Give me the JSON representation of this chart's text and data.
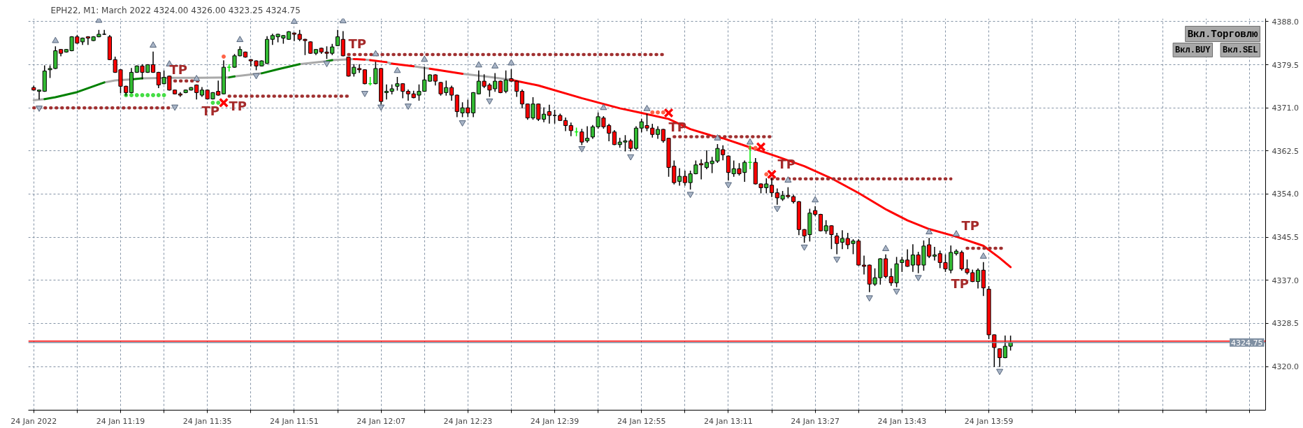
{
  "chart_data": {
    "type": "candlestick",
    "title": "EPH22, M1: March 2022  4324.00 4326.00 4323.25 4324.75",
    "x": [
      "2022-01-24T11:03",
      "2022-01-24T11:04",
      "2022-01-24T11:05",
      "2022-01-24T11:06",
      "2022-01-24T11:07",
      "2022-01-24T11:08",
      "2022-01-24T11:09",
      "2022-01-24T11:10",
      "2022-01-24T11:11",
      "2022-01-24T11:12",
      "2022-01-24T11:13",
      "2022-01-24T11:14",
      "2022-01-24T11:15",
      "2022-01-24T11:16",
      "2022-01-24T11:17",
      "2022-01-24T11:18",
      "2022-01-24T11:19",
      "2022-01-24T11:20",
      "2022-01-24T11:21",
      "2022-01-24T11:22",
      "2022-01-24T11:23",
      "2022-01-24T11:24",
      "2022-01-24T11:25",
      "2022-01-24T11:26",
      "2022-01-24T11:27",
      "2022-01-24T11:28",
      "2022-01-24T11:29",
      "2022-01-24T11:30",
      "2022-01-24T11:31",
      "2022-01-24T11:32",
      "2022-01-24T11:33",
      "2022-01-24T11:34",
      "2022-01-24T11:35",
      "2022-01-24T11:36",
      "2022-01-24T11:37",
      "2022-01-24T11:38",
      "2022-01-24T11:39",
      "2022-01-24T11:40",
      "2022-01-24T11:41",
      "2022-01-24T11:42",
      "2022-01-24T11:43",
      "2022-01-24T11:44",
      "2022-01-24T11:45",
      "2022-01-24T11:46",
      "2022-01-24T11:47",
      "2022-01-24T11:48",
      "2022-01-24T11:49",
      "2022-01-24T11:50",
      "2022-01-24T11:51",
      "2022-01-24T11:52",
      "2022-01-24T11:53",
      "2022-01-24T11:54",
      "2022-01-24T11:55",
      "2022-01-24T11:56",
      "2022-01-24T11:57",
      "2022-01-24T11:58",
      "2022-01-24T11:59",
      "2022-01-24T12:00",
      "2022-01-24T12:01",
      "2022-01-24T12:02",
      "2022-01-24T12:03",
      "2022-01-24T12:04",
      "2022-01-24T12:05",
      "2022-01-24T12:06",
      "2022-01-24T12:07",
      "2022-01-24T12:08",
      "2022-01-24T12:09",
      "2022-01-24T12:10",
      "2022-01-24T12:11",
      "2022-01-24T12:12",
      "2022-01-24T12:13",
      "2022-01-24T12:14",
      "2022-01-24T12:15",
      "2022-01-24T12:16",
      "2022-01-24T12:17",
      "2022-01-24T12:18",
      "2022-01-24T12:19",
      "2022-01-24T12:20",
      "2022-01-24T12:21",
      "2022-01-24T12:22",
      "2022-01-24T12:23",
      "2022-01-24T12:24",
      "2022-01-24T12:25",
      "2022-01-24T12:26",
      "2022-01-24T12:27",
      "2022-01-24T12:28",
      "2022-01-24T12:29",
      "2022-01-24T12:30",
      "2022-01-24T12:31",
      "2022-01-24T12:32",
      "2022-01-24T12:33",
      "2022-01-24T12:34",
      "2022-01-24T12:35",
      "2022-01-24T12:36",
      "2022-01-24T12:37",
      "2022-01-24T12:38",
      "2022-01-24T12:39",
      "2022-01-24T12:40",
      "2022-01-24T12:41",
      "2022-01-24T12:42",
      "2022-01-24T12:43",
      "2022-01-24T12:44",
      "2022-01-24T12:45",
      "2022-01-24T12:46",
      "2022-01-24T12:47",
      "2022-01-24T12:48",
      "2022-01-24T12:49",
      "2022-01-24T12:50",
      "2022-01-24T12:51",
      "2022-01-24T12:52",
      "2022-01-24T12:53",
      "2022-01-24T12:54",
      "2022-01-24T12:55",
      "2022-01-24T12:56",
      "2022-01-24T12:57",
      "2022-01-24T12:58",
      "2022-01-24T12:59",
      "2022-01-24T13:00",
      "2022-01-24T13:01",
      "2022-01-24T13:02",
      "2022-01-24T13:03",
      "2022-01-24T13:04",
      "2022-01-24T13:05",
      "2022-01-24T13:06",
      "2022-01-24T13:07",
      "2022-01-24T13:08",
      "2022-01-24T13:09",
      "2022-01-24T13:10",
      "2022-01-24T13:11",
      "2022-01-24T13:12",
      "2022-01-24T13:13",
      "2022-01-24T13:14",
      "2022-01-24T13:15",
      "2022-01-24T13:16",
      "2022-01-24T13:17",
      "2022-01-24T13:18",
      "2022-01-24T13:19",
      "2022-01-24T13:20",
      "2022-01-24T13:21",
      "2022-01-24T13:22",
      "2022-01-24T13:23",
      "2022-01-24T13:24",
      "2022-01-24T13:25",
      "2022-01-24T13:26",
      "2022-01-24T13:27",
      "2022-01-24T13:28",
      "2022-01-24T13:29",
      "2022-01-24T13:30",
      "2022-01-24T13:31",
      "2022-01-24T13:32",
      "2022-01-24T13:33",
      "2022-01-24T13:34",
      "2022-01-24T13:35",
      "2022-01-24T13:36",
      "2022-01-24T13:37",
      "2022-01-24T13:38",
      "2022-01-24T13:39",
      "2022-01-24T13:40",
      "2022-01-24T13:41",
      "2022-01-24T13:42",
      "2022-01-24T13:43",
      "2022-01-24T13:44",
      "2022-01-24T13:45",
      "2022-01-24T13:46",
      "2022-01-24T13:47",
      "2022-01-24T13:48",
      "2022-01-24T13:49",
      "2022-01-24T13:50",
      "2022-01-24T13:51",
      "2022-01-24T13:52",
      "2022-01-24T13:53",
      "2022-01-24T13:54",
      "2022-01-24T13:55",
      "2022-01-24T13:56",
      "2022-01-24T13:57",
      "2022-01-24T13:58",
      "2022-01-24T13:59",
      "2022-01-24T14:00",
      "2022-01-24T14:01",
      "2022-01-24T14:02",
      "2022-01-24T14:03"
    ],
    "ohlc": [
      [
        4375.0,
        4375.25,
        4374.5,
        4374.5
      ],
      [
        4374.25,
        4374.5,
        4372.75,
        4374.5
      ],
      [
        4374.25,
        4379.25,
        4374.25,
        4378.25
      ],
      [
        4378.5,
        4379.25,
        4377.0,
        4378.75
      ],
      [
        4378.75,
        4383.0,
        4378.75,
        4382.25
      ],
      [
        4382.5,
        4382.5,
        4381.25,
        4381.75
      ],
      [
        4382.0,
        4382.5,
        4382.0,
        4382.5
      ],
      [
        4382.25,
        4385.0,
        4382.25,
        4385.0
      ],
      [
        4385.0,
        4385.25,
        4383.75,
        4383.75
      ],
      [
        4384.0,
        4384.75,
        4383.5,
        4384.75
      ],
      [
        4385.0,
        4385.0,
        4383.5,
        4384.75
      ],
      [
        4384.25,
        4385.0,
        4384.25,
        4385.0
      ],
      [
        4385.0,
        4386.25,
        4385.0,
        4385.5
      ],
      [
        4385.5,
        4386.25,
        4385.5,
        4385.5
      ],
      [
        4385.0,
        4385.25,
        4380.5,
        4380.5
      ],
      [
        4380.5,
        4381.0,
        4378.0,
        4378.0
      ],
      [
        4378.5,
        4378.5,
        4374.0,
        4375.25
      ],
      [
        4375.25,
        4375.25,
        4373.5,
        4374.0
      ],
      [
        4374.0,
        4378.75,
        4374.0,
        4378.0
      ],
      [
        4378.0,
        4379.25,
        4378.0,
        4379.25
      ],
      [
        4379.25,
        4379.5,
        4376.75,
        4378.0
      ],
      [
        4378.0,
        4379.5,
        4378.0,
        4379.5
      ],
      [
        4379.5,
        4382.0,
        4378.0,
        4378.0
      ],
      [
        4378.0,
        4378.0,
        4375.0,
        4375.5
      ],
      [
        4375.75,
        4378.25,
        4375.75,
        4377.0
      ],
      [
        4377.25,
        4377.25,
        4374.5,
        4374.5
      ],
      [
        4374.5,
        4374.5,
        4373.75,
        4373.75
      ],
      [
        4373.75,
        4374.0,
        4373.25,
        4373.5
      ],
      [
        4374.0,
        4374.5,
        4374.0,
        4374.5
      ],
      [
        4374.5,
        4375.0,
        4374.5,
        4375.0
      ],
      [
        4375.5,
        4375.5,
        4372.75,
        4374.0
      ],
      [
        4373.5,
        4375.0,
        4373.25,
        4374.5
      ],
      [
        4374.5,
        4374.5,
        4372.75,
        4372.75
      ],
      [
        4372.75,
        4374.0,
        4372.75,
        4374.0
      ],
      [
        4374.25,
        4376.25,
        4373.5,
        4373.5
      ],
      [
        4373.75,
        4380.25,
        4373.75,
        4379.0
      ],
      [
        4379.0,
        4379.5,
        4378.25,
        4379.0
      ],
      [
        4379.0,
        4381.5,
        4379.0,
        4381.25
      ],
      [
        4381.25,
        4383.0,
        4381.25,
        4382.5
      ],
      [
        4382.0,
        4382.0,
        4381.0,
        4381.0
      ],
      [
        4380.5,
        4380.5,
        4379.25,
        4380.25
      ],
      [
        4380.25,
        4380.25,
        4378.5,
        4379.25
      ],
      [
        4379.25,
        4380.25,
        4379.25,
        4380.25
      ],
      [
        4379.75,
        4385.0,
        4379.75,
        4384.5
      ],
      [
        4384.5,
        4385.5,
        4383.5,
        4385.25
      ],
      [
        4385.0,
        4385.5,
        4384.0,
        4385.5
      ],
      [
        4384.75,
        4385.25,
        4383.75,
        4385.25
      ],
      [
        4384.5,
        4386.0,
        4384.5,
        4386.0
      ],
      [
        4385.75,
        4385.75,
        4384.25,
        4385.5
      ],
      [
        4385.5,
        4386.25,
        4384.25,
        4384.5
      ],
      [
        4384.5,
        4384.5,
        4381.5,
        4384.25
      ],
      [
        4384.0,
        4384.0,
        4381.75,
        4381.75
      ],
      [
        4381.75,
        4382.5,
        4381.5,
        4382.5
      ],
      [
        4382.75,
        4382.75,
        4381.75,
        4382.0
      ],
      [
        4382.0,
        4383.0,
        4380.75,
        4381.75
      ],
      [
        4381.75,
        4383.5,
        4381.5,
        4383.0
      ],
      [
        4383.25,
        4386.25,
        4383.25,
        4385.0
      ],
      [
        4384.5,
        4386.0,
        4381.25,
        4381.25
      ],
      [
        4381.0,
        4381.0,
        4377.25,
        4377.25
      ],
      [
        4377.75,
        4379.5,
        4377.25,
        4379.0
      ],
      [
        4378.75,
        4379.5,
        4378.0,
        4378.5
      ],
      [
        4378.5,
        4378.5,
        4375.75,
        4375.75
      ],
      [
        4375.75,
        4377.0,
        4375.5,
        4375.75
      ],
      [
        4375.75,
        4380.0,
        4375.75,
        4378.75
      ],
      [
        4378.75,
        4378.75,
        4371.75,
        4372.25
      ],
      [
        4374.0,
        4375.5,
        4372.75,
        4374.25
      ],
      [
        4374.25,
        4375.5,
        4373.75,
        4374.75
      ],
      [
        4375.25,
        4377.0,
        4374.5,
        4375.75
      ],
      [
        4375.75,
        4375.75,
        4373.0,
        4374.25
      ],
      [
        4374.25,
        4374.5,
        4372.5,
        4373.75
      ],
      [
        4373.75,
        4374.25,
        4373.0,
        4373.0
      ],
      [
        4373.5,
        4375.5,
        4372.5,
        4374.25
      ],
      [
        4374.25,
        4379.0,
        4374.25,
        4376.5
      ],
      [
        4376.25,
        4377.5,
        4376.25,
        4377.5
      ],
      [
        4377.5,
        4377.5,
        4375.5,
        4376.25
      ],
      [
        4376.0,
        4376.0,
        4373.5,
        4373.75
      ],
      [
        4374.0,
        4376.25,
        4373.5,
        4375.0
      ],
      [
        4375.0,
        4375.25,
        4372.5,
        4373.5
      ],
      [
        4373.5,
        4373.5,
        4369.25,
        4370.25
      ],
      [
        4370.0,
        4372.0,
        4369.25,
        4371.0
      ],
      [
        4371.0,
        4372.5,
        4369.25,
        4370.0
      ],
      [
        4370.0,
        4374.0,
        4369.25,
        4374.0
      ],
      [
        4373.75,
        4378.25,
        4373.75,
        4376.25
      ],
      [
        4376.25,
        4377.5,
        4375.0,
        4375.25
      ],
      [
        4375.5,
        4375.75,
        4373.25,
        4374.5
      ],
      [
        4374.75,
        4377.75,
        4374.25,
        4376.25
      ],
      [
        4376.25,
        4376.25,
        4374.0,
        4374.0
      ],
      [
        4374.25,
        4378.25,
        4374.0,
        4376.5
      ],
      [
        4376.75,
        4378.5,
        4376.25,
        4376.25
      ],
      [
        4376.25,
        4376.25,
        4373.25,
        4374.25
      ],
      [
        4374.25,
        4374.5,
        4371.0,
        4371.75
      ],
      [
        4371.75,
        4371.75,
        4368.75,
        4369.0
      ],
      [
        4369.0,
        4373.0,
        4368.75,
        4371.75
      ],
      [
        4371.75,
        4371.75,
        4368.5,
        4368.75
      ],
      [
        4368.75,
        4371.0,
        4368.25,
        4369.75
      ],
      [
        4370.25,
        4371.5,
        4368.0,
        4369.5
      ],
      [
        4369.5,
        4370.5,
        4368.0,
        4369.5
      ],
      [
        4369.5,
        4369.75,
        4368.5,
        4368.5
      ],
      [
        4368.5,
        4369.0,
        4366.5,
        4367.5
      ],
      [
        4367.5,
        4368.0,
        4365.5,
        4366.5
      ],
      [
        4366.25,
        4367.0,
        4365.5,
        4366.25
      ],
      [
        4366.25,
        4366.75,
        4363.75,
        4364.25
      ],
      [
        4364.5,
        4367.25,
        4364.25,
        4365.0
      ],
      [
        4365.25,
        4367.5,
        4365.0,
        4367.25
      ],
      [
        4367.25,
        4370.0,
        4367.0,
        4369.25
      ],
      [
        4369.0,
        4369.25,
        4367.0,
        4367.25
      ],
      [
        4367.5,
        4367.75,
        4364.5,
        4366.0
      ],
      [
        4366.25,
        4366.5,
        4363.75,
        4363.75
      ],
      [
        4363.75,
        4365.0,
        4363.25,
        4364.25
      ],
      [
        4364.25,
        4365.5,
        4362.5,
        4364.5
      ],
      [
        4364.5,
        4364.75,
        4362.5,
        4363.0
      ],
      [
        4363.0,
        4367.25,
        4362.75,
        4367.0
      ],
      [
        4367.0,
        4368.75,
        4366.25,
        4368.25
      ],
      [
        4367.5,
        4369.75,
        4366.5,
        4367.0
      ],
      [
        4367.0,
        4367.75,
        4365.25,
        4365.75
      ],
      [
        4365.75,
        4367.25,
        4365.0,
        4366.75
      ],
      [
        4366.75,
        4366.75,
        4364.25,
        4364.5
      ],
      [
        4365.0,
        4365.0,
        4357.5,
        4359.25
      ],
      [
        4359.5,
        4360.5,
        4356.0,
        4356.25
      ],
      [
        4356.5,
        4359.0,
        4355.75,
        4357.5
      ],
      [
        4357.5,
        4358.5,
        4355.75,
        4356.25
      ],
      [
        4356.25,
        4358.5,
        4355.0,
        4358.0
      ],
      [
        4358.0,
        4360.5,
        4358.0,
        4359.75
      ],
      [
        4360.0,
        4360.75,
        4357.0,
        4359.75
      ],
      [
        4359.25,
        4362.5,
        4359.0,
        4360.25
      ],
      [
        4360.0,
        4361.25,
        4358.25,
        4360.5
      ],
      [
        4360.5,
        4363.75,
        4360.25,
        4363.0
      ],
      [
        4362.75,
        4363.5,
        4360.75,
        4361.75
      ],
      [
        4361.5,
        4361.5,
        4356.75,
        4358.25
      ],
      [
        4358.0,
        4360.5,
        4357.5,
        4359.0
      ],
      [
        4359.0,
        4360.0,
        4357.75,
        4358.0
      ],
      [
        4358.25,
        4360.5,
        4356.5,
        4360.25
      ],
      [
        4360.25,
        4363.5,
        4359.0,
        4360.25
      ],
      [
        4360.25,
        4361.0,
        4356.0,
        4356.0
      ],
      [
        4356.0,
        4356.0,
        4354.25,
        4355.25
      ],
      [
        4355.25,
        4357.0,
        4354.25,
        4356.0
      ],
      [
        4355.75,
        4357.0,
        4353.5,
        4354.25
      ],
      [
        4354.25,
        4355.0,
        4352.0,
        4353.25
      ],
      [
        4353.0,
        4354.5,
        4352.75,
        4353.75
      ],
      [
        4353.75,
        4355.25,
        4353.25,
        4353.5
      ],
      [
        4353.5,
        4353.75,
        4352.25,
        4352.5
      ],
      [
        4352.5,
        4352.5,
        4346.0,
        4347.0
      ],
      [
        4347.0,
        4347.0,
        4344.5,
        4345.75
      ],
      [
        4346.0,
        4351.0,
        4344.75,
        4350.25
      ],
      [
        4350.75,
        4351.5,
        4349.75,
        4350.0
      ],
      [
        4350.0,
        4350.0,
        4346.75,
        4346.75
      ],
      [
        4346.75,
        4348.75,
        4346.25,
        4347.75
      ],
      [
        4347.75,
        4347.75,
        4343.25,
        4346.0
      ],
      [
        4345.75,
        4346.25,
        4342.25,
        4344.25
      ],
      [
        4344.5,
        4346.75,
        4343.25,
        4345.25
      ],
      [
        4345.25,
        4346.25,
        4343.25,
        4344.0
      ],
      [
        4344.25,
        4345.0,
        4342.25,
        4344.75
      ],
      [
        4344.75,
        4345.0,
        4340.0,
        4340.0
      ],
      [
        4340.0,
        4341.75,
        4338.25,
        4339.75
      ],
      [
        4340.0,
        4340.0,
        4334.75,
        4336.25
      ],
      [
        4336.25,
        4339.25,
        4336.0,
        4337.5
      ],
      [
        4337.5,
        4341.25,
        4336.25,
        4341.25
      ],
      [
        4341.25,
        4342.0,
        4337.5,
        4337.75
      ],
      [
        4337.75,
        4339.25,
        4336.0,
        4336.5
      ],
      [
        4336.5,
        4341.5,
        4335.75,
        4340.25
      ],
      [
        4340.5,
        4341.5,
        4338.75,
        4341.0
      ],
      [
        4341.0,
        4343.0,
        4339.75,
        4339.75
      ],
      [
        4340.0,
        4344.0,
        4338.75,
        4342.0
      ],
      [
        4342.0,
        4342.5,
        4338.5,
        4340.0
      ],
      [
        4340.0,
        4344.75,
        4339.0,
        4343.75
      ],
      [
        4344.0,
        4345.25,
        4341.5,
        4341.75
      ],
      [
        4341.75,
        4343.5,
        4341.0,
        4342.0
      ],
      [
        4342.25,
        4342.75,
        4339.5,
        4340.5
      ],
      [
        4340.5,
        4342.0,
        4338.75,
        4339.25
      ],
      [
        4339.0,
        4343.75,
        4338.5,
        4342.5
      ],
      [
        4342.25,
        4343.0,
        4342.0,
        4342.75
      ],
      [
        4342.5,
        4342.75,
        4339.0,
        4339.25
      ],
      [
        4339.25,
        4341.0,
        4338.25,
        4338.5
      ],
      [
        4338.5,
        4339.0,
        4336.75,
        4336.75
      ],
      [
        4336.75,
        4339.25,
        4335.5,
        4339.0
      ],
      [
        4339.0,
        4340.5,
        4334.0,
        4335.5
      ],
      [
        4335.25,
        4335.75,
        4325.5,
        4326.25
      ],
      [
        4326.25,
        4326.25,
        4320.0,
        4323.75
      ],
      [
        4323.5,
        4323.5,
        4320.0,
        4321.75
      ],
      [
        4321.75,
        4326.0,
        4321.75,
        4324.0
      ],
      [
        4324.0,
        4326.0,
        4323.25,
        4324.75
      ]
    ],
    "colors": [
      "#ff0000",
      "#33bb33",
      "#33bb33",
      "#33bb33",
      "#33bb33",
      "#ff0000",
      "#33bb33",
      "#33bb33",
      "#ff0000",
      "#33bb33",
      "#ff0000",
      "#33bb33",
      "#33bb33",
      "#000000",
      "#ff0000",
      "#ff0000",
      "#ff0000",
      "#ff0000",
      "#33bb33",
      "#33bb33",
      "#ff0000",
      "#33bb33",
      "#ff0000",
      "#ff0000",
      "#33bb33",
      "#ff0000",
      "#ff0000",
      "#ff0000",
      "#33bb33",
      "#33bb33",
      "#ff0000",
      "#33bb33",
      "#ff0000",
      "#33bb33",
      "#ff0000",
      "#33bb33",
      "#00ee00",
      "#33bb33",
      "#33bb33",
      "#ff0000",
      "#ff0000",
      "#ff0000",
      "#33bb33",
      "#33bb33",
      "#33bb33",
      "#33bb33",
      "#33bb33",
      "#33bb33",
      "#ff0000",
      "#ff0000",
      "#ff0000",
      "#ff0000",
      "#33bb33",
      "#ff0000",
      "#ff0000",
      "#33bb33",
      "#33bb33",
      "#ff0000",
      "#ff0000",
      "#33bb33",
      "#ff0000",
      "#ff0000",
      "#00ee00",
      "#33bb33",
      "#ff0000",
      "#33bb33",
      "#33bb33",
      "#33bb33",
      "#ff0000",
      "#ff0000",
      "#ff0000",
      "#33bb33",
      "#33bb33",
      "#33bb33",
      "#ff0000",
      "#ff0000",
      "#33bb33",
      "#ff0000",
      "#ff0000",
      "#33bb33",
      "#ff0000",
      "#33bb33",
      "#33bb33",
      "#ff0000",
      "#ff0000",
      "#33bb33",
      "#ff0000",
      "#33bb33",
      "#ff0000",
      "#ff0000",
      "#ff0000",
      "#ff0000",
      "#33bb33",
      "#ff0000",
      "#33bb33",
      "#ff0000",
      "#000000",
      "#ff0000",
      "#ff0000",
      "#ff0000",
      "#00ee00",
      "#ff0000",
      "#33bb33",
      "#33bb33",
      "#33bb33",
      "#ff0000",
      "#ff0000",
      "#ff0000",
      "#33bb33",
      "#33bb33",
      "#ff0000",
      "#33bb33",
      "#33bb33",
      "#ff0000",
      "#ff0000",
      "#33bb33",
      "#ff0000",
      "#ff0000",
      "#ff0000",
      "#33bb33",
      "#ff0000",
      "#33bb33",
      "#33bb33",
      "#ff0000",
      "#33bb33",
      "#33bb33",
      "#33bb33",
      "#ff0000",
      "#ff0000",
      "#33bb33",
      "#ff0000",
      "#33bb33",
      "#00ee00",
      "#ff0000",
      "#ff0000",
      "#33bb33",
      "#ff0000",
      "#ff0000",
      "#33bb33",
      "#ff0000",
      "#ff0000",
      "#ff0000",
      "#ff0000",
      "#33bb33",
      "#ff0000",
      "#ff0000",
      "#33bb33",
      "#ff0000",
      "#ff0000",
      "#33bb33",
      "#ff0000",
      "#33bb33",
      "#ff0000",
      "#ff0000",
      "#ff0000",
      "#33bb33",
      "#33bb33",
      "#ff0000",
      "#ff0000",
      "#33bb33",
      "#33bb33",
      "#ff0000",
      "#33bb33",
      "#ff0000",
      "#33bb33",
      "#ff0000",
      "#33bb33",
      "#ff0000",
      "#ff0000",
      "#33bb33",
      "#33bb33",
      "#ff0000",
      "#ff0000",
      "#ff0000",
      "#33bb33",
      "#ff0000",
      "#ff0000",
      "#ff0000",
      "#ff0000",
      "#33bb33",
      "#33bb33"
    ],
    "series": [
      {
        "type": "line",
        "color": "#a9a9a9",
        "line_style": "solid",
        "x": [
          "2022-01-24T11:03",
          "2022-01-24T11:05"
        ],
        "values": [
          4372.5,
          4372.7
        ]
      },
      {
        "type": "line",
        "color": "#a9a9a9",
        "line_style": "solid",
        "x": [
          "2022-01-24T11:16",
          "2022-01-24T11:18",
          "2022-01-24T11:21"
        ],
        "values": [
          4376.0,
          4376.4,
          4376.6
        ]
      },
      {
        "type": "line",
        "color": "#a9a9a9",
        "line_style": "solid",
        "x": [
          "2022-01-24T11:23",
          "2022-01-24T11:28",
          "2022-01-24T11:33",
          "2022-01-24T11:39"
        ],
        "values": [
          4376.8,
          4376.9,
          4376.9,
          4377.0
        ]
      },
      {
        "type": "line",
        "color": "#a9a9a9",
        "line_style": "solid",
        "x": [
          "2022-01-24T11:40",
          "2022-01-24T11:45"
        ],
        "values": [
          4377.2,
          4377.8
        ]
      },
      {
        "type": "line",
        "color": "#a9a9a9",
        "line_style": "solid",
        "x": [
          "2022-01-24T11:52",
          "2022-01-24T11:57"
        ],
        "values": [
          4379.6,
          4380.2
        ]
      },
      {
        "type": "line",
        "color": "#a9a9a9",
        "line_style": "solid",
        "x": [
          "2022-01-24T11:58",
          "2022-01-24T12:02"
        ],
        "values": [
          4380.4,
          4380.6
        ]
      },
      {
        "type": "line",
        "color": "#a9a9a9",
        "line_style": "solid",
        "x": [
          "2022-01-24T12:04",
          "2022-01-24T12:05"
        ],
        "values": [
          4380.5,
          4380.4
        ]
      },
      {
        "type": "line",
        "color": "#a9a9a9",
        "line_style": "solid",
        "x": [
          "2022-01-24T12:08",
          "2022-01-24T12:09"
        ],
        "values": [
          4380.0,
          4379.7
        ]
      },
      {
        "type": "line",
        "color": "#a9a9a9",
        "line_style": "solid",
        "x": [
          "2022-01-24T12:13",
          "2022-01-24T12:16"
        ],
        "values": [
          4379.2,
          4378.7
        ]
      },
      {
        "type": "line",
        "color": "#a9a9a9",
        "line_style": "solid",
        "x": [
          "2022-01-24T12:22",
          "2022-01-24T12:27",
          "2022-01-24T12:31"
        ],
        "values": [
          4377.7,
          4377.1,
          4376.5
        ]
      },
      {
        "type": "line",
        "color": "#008000",
        "line_style": "solid",
        "x": [
          "2022-01-24T11:05",
          "2022-01-24T11:07",
          "2022-01-24T11:11",
          "2022-01-24T11:16"
        ],
        "values": [
          4372.7,
          4373.1,
          4374.1,
          4376.0
        ]
      },
      {
        "type": "line",
        "color": "#008000",
        "line_style": "solid",
        "x": [
          "2022-01-24T11:21",
          "2022-01-24T11:23"
        ],
        "values": [
          4376.6,
          4376.8
        ]
      },
      {
        "type": "line",
        "color": "#008000",
        "line_style": "solid",
        "x": [
          "2022-01-24T11:39",
          "2022-01-24T11:40"
        ],
        "values": [
          4377.0,
          4377.2
        ]
      },
      {
        "type": "line",
        "color": "#008000",
        "line_style": "solid",
        "x": [
          "2022-01-24T11:45",
          "2022-01-24T11:48",
          "2022-01-24T11:52"
        ],
        "values": [
          4377.8,
          4378.6,
          4379.6
        ]
      },
      {
        "type": "line",
        "color": "#008000",
        "line_style": "solid",
        "x": [
          "2022-01-24T11:57",
          "2022-01-24T11:58"
        ],
        "values": [
          4380.2,
          4380.4
        ]
      },
      {
        "type": "line",
        "color": "#ff0000",
        "line_style": "solid",
        "x": [
          "2022-01-24T12:02",
          "2022-01-24T12:04"
        ],
        "values": [
          4380.6,
          4380.5
        ]
      },
      {
        "type": "line",
        "color": "#ff0000",
        "line_style": "solid",
        "x": [
          "2022-01-24T12:05",
          "2022-01-24T12:08"
        ],
        "values": [
          4380.4,
          4380.0
        ]
      },
      {
        "type": "line",
        "color": "#ff0000",
        "line_style": "solid",
        "x": [
          "2022-01-24T12:09",
          "2022-01-24T12:13"
        ],
        "values": [
          4379.7,
          4379.2
        ]
      },
      {
        "type": "line",
        "color": "#ff0000",
        "line_style": "solid",
        "x": [
          "2022-01-24T12:16",
          "2022-01-24T12:22"
        ],
        "values": [
          4378.7,
          4377.7
        ]
      },
      {
        "type": "line",
        "color": "#ff0000",
        "line_style": "solid",
        "x": [
          "2022-01-24T12:31",
          "2022-01-24T12:36",
          "2022-01-24T12:44",
          "2022-01-24T12:51",
          "2022-01-24T12:55",
          "2022-01-24T13:00",
          "2022-01-24T13:04",
          "2022-01-24T13:08",
          "2022-01-24T13:10",
          "2022-01-24T13:15",
          "2022-01-24T13:20",
          "2022-01-24T13:25",
          "2022-01-24T13:30",
          "2022-01-24T13:35",
          "2022-01-24T13:40",
          "2022-01-24T13:44",
          "2022-01-24T13:48",
          "2022-01-24T13:53",
          "2022-01-24T13:58",
          "2022-01-24T14:01",
          "2022-01-24T14:03"
        ],
        "values": [
          4376.5,
          4375.4,
          4372.9,
          4370.9,
          4370.0,
          4368.8,
          4366.8,
          4365.5,
          4365.0,
          4363.2,
          4361.4,
          4359.5,
          4357.1,
          4354.2,
          4351.0,
          4348.8,
          4347.1,
          4345.6,
          4343.8,
          4341.4,
          4339.6
        ]
      },
      {
        "type": "line",
        "color": "#a03030",
        "line_style": "dotted",
        "x": [
          "2022-01-24T11:03",
          "2022-01-24T11:28"
        ],
        "values": [
          4371.0,
          4371.0
        ]
      },
      {
        "type": "line",
        "color": "#a03030",
        "line_style": "dotted",
        "x": [
          "2022-01-24T11:29",
          "2022-01-24T11:34"
        ],
        "values": [
          4376.3,
          4376.3
        ]
      },
      {
        "type": "line",
        "color": "#a03030",
        "line_style": "dotted",
        "x": [
          "2022-01-24T11:39",
          "2022-01-24T12:01"
        ],
        "values": [
          4373.3,
          4373.3
        ]
      },
      {
        "type": "line",
        "color": "#a03030",
        "line_style": "dotted",
        "x": [
          "2022-01-24T12:01",
          "2022-01-24T12:59"
        ],
        "values": [
          4381.5,
          4381.5
        ]
      },
      {
        "type": "line",
        "color": "#a03030",
        "line_style": "dotted",
        "x": [
          "2022-01-24T13:01",
          "2022-01-24T13:19"
        ],
        "values": [
          4365.3,
          4365.3
        ]
      },
      {
        "type": "line",
        "color": "#a03030",
        "line_style": "dotted",
        "x": [
          "2022-01-24T13:19",
          "2022-01-24T13:52"
        ],
        "values": [
          4357.0,
          4357.0
        ]
      },
      {
        "type": "line",
        "color": "#a03030",
        "line_style": "dotted",
        "x": [
          "2022-01-24T13:55",
          "2022-01-24T14:02"
        ],
        "values": [
          4343.3,
          4343.3
        ]
      },
      {
        "type": "scatter",
        "color": "#a8b4c6",
        "marker": "triangle",
        "x": [
          "2022-01-24T11:07",
          "2022-01-24T11:15",
          "2022-01-24T11:25",
          "2022-01-24T11:28",
          "2022-01-24T11:33",
          "2022-01-24T11:41",
          "2022-01-24T11:51",
          "2022-01-24T12:00",
          "2022-01-24T12:06",
          "2022-01-24T12:10",
          "2022-01-24T12:15",
          "2022-01-24T12:25",
          "2022-01-24T12:28",
          "2022-01-24T12:31",
          "2022-01-24T12:48",
          "2022-01-24T12:56",
          "2022-01-24T13:09",
          "2022-01-24T13:15",
          "2022-01-24T13:22",
          "2022-01-24T13:27",
          "2022-01-24T13:40",
          "2022-01-24T13:48",
          "2022-01-24T13:53",
          "2022-01-24T13:58"
        ],
        "values": [
          4384.2,
          4388.2,
          4383.3,
          4379.6,
          4376.7,
          4384.4,
          4388.0,
          4388.1,
          4381.6,
          4378.3,
          4380.5,
          4379.4,
          4379.2,
          4379.8,
          4371.0,
          4370.8,
          4365.0,
          4364.2,
          4356.7,
          4352.8,
          4343.2,
          4346.5,
          4346.1,
          4341.7
        ]
      },
      {
        "type": "scatter",
        "color": "#a8b4c6",
        "marker": "triangle",
        "x": [
          "2022-01-24T11:04",
          "2022-01-24T11:29",
          "2022-01-24T11:44",
          "2022-01-24T11:57",
          "2022-01-24T12:04",
          "2022-01-24T12:07",
          "2022-01-24T12:12",
          "2022-01-24T12:22",
          "2022-01-24T12:27",
          "2022-01-24T12:44",
          "2022-01-24T12:53",
          "2022-01-24T13:04",
          "2022-01-24T13:11",
          "2022-01-24T13:20",
          "2022-01-24T13:25",
          "2022-01-24T13:31",
          "2022-01-24T13:37",
          "2022-01-24T13:42",
          "2022-01-24T13:46",
          "2022-01-24T14:01"
        ],
        "values": [
          4371.0,
          4371.2,
          4377.4,
          4379.8,
          4373.9,
          4371.2,
          4371.4,
          4368.1,
          4372.4,
          4363.0,
          4361.4,
          4354.0,
          4355.9,
          4351.2,
          4343.6,
          4341.2,
          4333.6,
          4334.9,
          4337.6,
          4319.1
        ]
      },
      {
        "type": "scatter",
        "color": "#44dd44",
        "marker": "circle",
        "x": [
          "2022-01-24T11:20",
          "2022-01-24T11:21",
          "2022-01-24T11:22",
          "2022-01-24T11:23",
          "2022-01-24T11:24",
          "2022-01-24T11:25",
          "2022-01-24T11:26",
          "2022-01-24T11:27",
          "2022-01-24T11:36",
          "2022-01-24T11:37"
        ],
        "values": [
          4373.5,
          4373.5,
          4373.5,
          4373.5,
          4373.5,
          4373.5,
          4373.5,
          4373.5,
          4372.0,
          4372.0
        ]
      },
      {
        "type": "scatter",
        "color": "#ff6347",
        "marker": "circle",
        "x": [
          "2022-01-24T11:38",
          "2022-01-24T12:57",
          "2022-01-24T12:58",
          "2022-01-24T12:59",
          "2022-01-24T13:15",
          "2022-01-24T13:16",
          "2022-01-24T13:18"
        ],
        "values": [
          4381.1,
          4370.1,
          4370.1,
          4370.1,
          4363.1,
          4363.1,
          4357.9
        ]
      },
      {
        "type": "scatter",
        "color": "#ff0000",
        "marker": "cross",
        "x": [
          "2022-01-24T11:38",
          "2022-01-24T13:00",
          "2022-01-24T13:17",
          "2022-01-24T13:19"
        ],
        "values": [
          4372.0,
          4370.0,
          4363.3,
          4357.9
        ]
      }
    ],
    "annotations": [
      "TP",
      "TP",
      "TP",
      "TP",
      "TP",
      "TP",
      "TP",
      "TP",
      "Вкл.Торговлю",
      "Вкл.BUY",
      "Вкл.SEL"
    ],
    "ref_lines": [
      {
        "axis": "y",
        "value": 4325.0,
        "color": "#ff0000"
      },
      {
        "axis": "y",
        "value": 4324.75,
        "label": "4324.75",
        "color": "#7f8fa2"
      }
    ],
    "xlim": [
      "2022-01-24T11:02",
      "2022-01-24T14:50"
    ],
    "xticks": [
      {
        "value": "2022-01-24T11:03",
        "label": "24 Jan 2022"
      },
      {
        "value": "2022-01-24T11:11",
        "label": null
      },
      {
        "value": "2022-01-24T11:19",
        "label": "24 Jan 11:19"
      },
      {
        "value": "2022-01-24T11:27",
        "label": null
      },
      {
        "value": "2022-01-24T11:35",
        "label": "24 Jan 11:35"
      },
      {
        "value": "2022-01-24T11:43",
        "label": null
      },
      {
        "value": "2022-01-24T11:51",
        "label": "24 Jan 11:51"
      },
      {
        "value": "2022-01-24T11:59",
        "label": null
      },
      {
        "value": "2022-01-24T12:07",
        "label": "24 Jan 12:07"
      },
      {
        "value": "2022-01-24T12:15",
        "label": null
      },
      {
        "value": "2022-01-24T12:23",
        "label": "24 Jan 12:23"
      },
      {
        "value": "2022-01-24T12:31",
        "label": null
      },
      {
        "value": "2022-01-24T12:39",
        "label": "24 Jan 12:39"
      },
      {
        "value": "2022-01-24T12:47",
        "label": null
      },
      {
        "value": "2022-01-24T12:55",
        "label": "24 Jan 12:55"
      },
      {
        "value": "2022-01-24T13:03",
        "label": null
      },
      {
        "value": "2022-01-24T13:11",
        "label": "24 Jan 13:11"
      },
      {
        "value": "2022-01-24T13:19",
        "label": null
      },
      {
        "value": "2022-01-24T13:27",
        "label": "24 Jan 13:27"
      },
      {
        "value": "2022-01-24T13:35",
        "label": null
      },
      {
        "value": "2022-01-24T13:43",
        "label": "24 Jan 13:43"
      },
      {
        "value": "2022-01-24T13:51",
        "label": null
      },
      {
        "value": "2022-01-24T13:59",
        "label": "24 Jan 13:59"
      },
      {
        "value": "2022-01-24T14:07",
        "label": null
      },
      {
        "value": "2022-01-24T14:15",
        "label": null
      },
      {
        "value": "2022-01-24T14:23",
        "label": null
      },
      {
        "value": "2022-01-24T14:31",
        "label": null
      },
      {
        "value": "2022-01-24T14:39",
        "label": null
      },
      {
        "value": "2022-01-24T14:47",
        "label": null
      }
    ],
    "ylim": [
      4311.4,
      4388.6
    ],
    "yticks": [
      {
        "value": 4388,
        "label": "4388.0"
      },
      4379.5,
      {
        "value": 4371,
        "label": "4371.0"
      },
      4362.5,
      {
        "value": 4354,
        "label": "4354.0"
      },
      4345.5,
      {
        "value": 4337,
        "label": "4337.0"
      },
      4328.5,
      {
        "value": 4320,
        "label": "4320.0"
      }
    ],
    "grid": true
  }
}
